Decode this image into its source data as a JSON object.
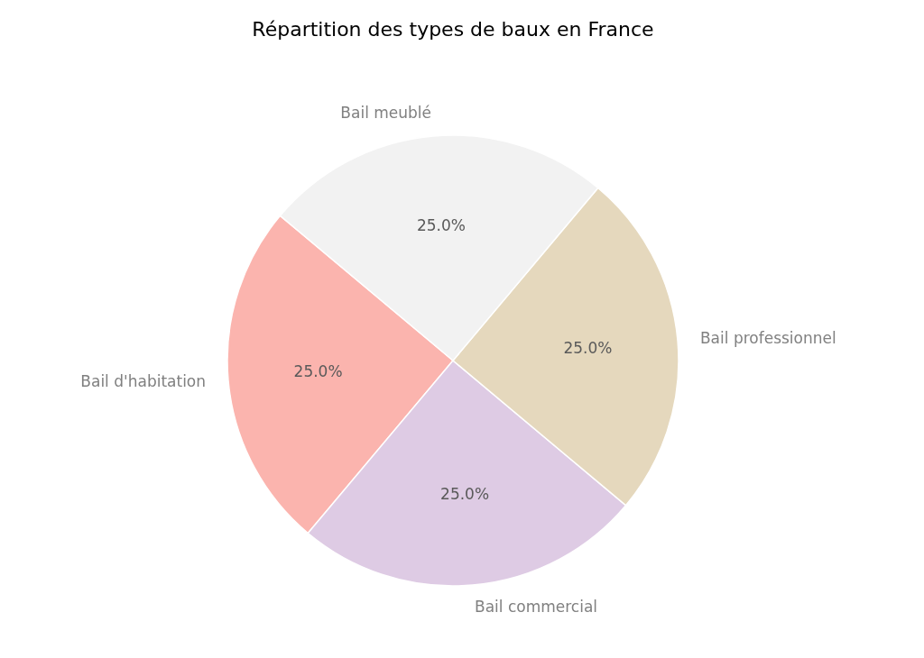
{
  "chart_data": {
    "type": "pie",
    "title": "Répartition des types de baux en France",
    "categories": [
      "Bail d'habitation",
      "Bail commercial",
      "Bail professionnel",
      "Bail meublé"
    ],
    "values": [
      25,
      25,
      25,
      25
    ],
    "colors": [
      "#fbb4ae",
      "#decbe4",
      "#e5d8bd",
      "#f2f2f2"
    ],
    "value_labels": [
      "25.0%",
      "25.0%",
      "25.0%",
      "25.0%"
    ]
  }
}
